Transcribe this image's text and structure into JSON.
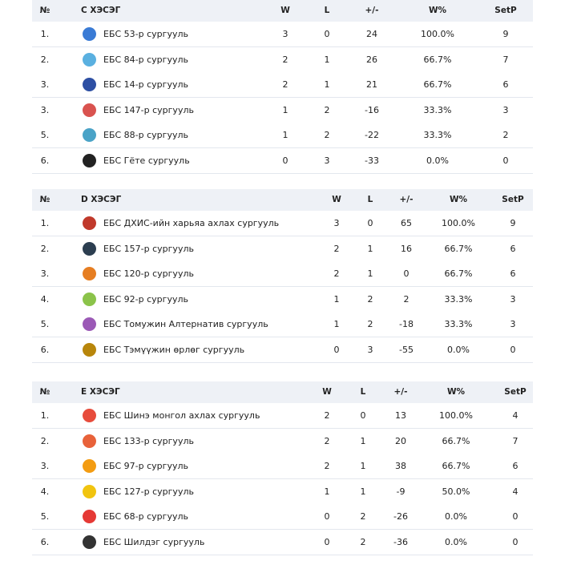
{
  "tables": [
    {
      "header": [
        "№",
        "C ХЭСЭГ",
        "W",
        "L",
        "+/-",
        "W%",
        "SetP"
      ],
      "rows": [
        [
          "1.",
          "ЕБС 53-р сургууль",
          3,
          0,
          24,
          "100.0%",
          9
        ],
        [
          "2.",
          "ЕБС 84-р сургууль",
          2,
          1,
          26,
          "66.7%",
          7
        ],
        [
          "3.",
          "ЕБС 14-р сургууль",
          2,
          1,
          21,
          "66.7%",
          6
        ],
        [
          "3.",
          "ЕБС 147-р сургууль",
          1,
          2,
          -16,
          "33.3%",
          3
        ],
        [
          "5.",
          "ЕБС 88-р сургууль",
          1,
          2,
          -22,
          "33.3%",
          2
        ],
        [
          "6.",
          "ЕБС Гёте сургууль",
          0,
          3,
          -33,
          "0.0%",
          0
        ]
      ]
    },
    {
      "header": [
        "№",
        "D ХЭСЭГ",
        "W",
        "L",
        "+/-",
        "W%",
        "SetP"
      ],
      "rows": [
        [
          "1.",
          "ЕБС ДХИС-ийн харьяа ахлах сургууль",
          3,
          0,
          65,
          "100.0%",
          9
        ],
        [
          "2.",
          "ЕБС 157-р сургууль",
          2,
          1,
          16,
          "66.7%",
          6
        ],
        [
          "3.",
          "ЕБС 120-р сургууль",
          2,
          1,
          0,
          "66.7%",
          6
        ],
        [
          "4.",
          "ЕБС 92-р сургууль",
          1,
          2,
          2,
          "33.3%",
          3
        ],
        [
          "5.",
          "ЕБС Томужин Алтернатив сургууль",
          1,
          2,
          -18,
          "33.3%",
          3
        ],
        [
          "6.",
          "ЕБС Тэмүүжин өрлөг сургууль",
          0,
          3,
          -55,
          "0.0%",
          0
        ]
      ]
    },
    {
      "header": [
        "№",
        "E ХЭСЭГ",
        "W",
        "L",
        "+/-",
        "W%",
        "SetP"
      ],
      "rows": [
        [
          "1.",
          "ЕБС Шинэ монгол ахлах сургууль",
          2,
          0,
          13,
          "100.0%",
          4
        ],
        [
          "2.",
          "ЕБС 133-р сургууль",
          2,
          1,
          20,
          "66.7%",
          7
        ],
        [
          "3.",
          "ЕБС 97-р сургууль",
          2,
          1,
          38,
          "66.7%",
          6
        ],
        [
          "4.",
          "ЕБС 127-р сургууль",
          1,
          1,
          -9,
          "50.0%",
          4
        ],
        [
          "5.",
          "ЕБС 68-р сургууль",
          0,
          2,
          -26,
          "0.0%",
          0
        ],
        [
          "6.",
          "ЕБС Шилдэг сургууль",
          0,
          2,
          -36,
          "0.0%",
          0
        ]
      ]
    }
  ]
}
